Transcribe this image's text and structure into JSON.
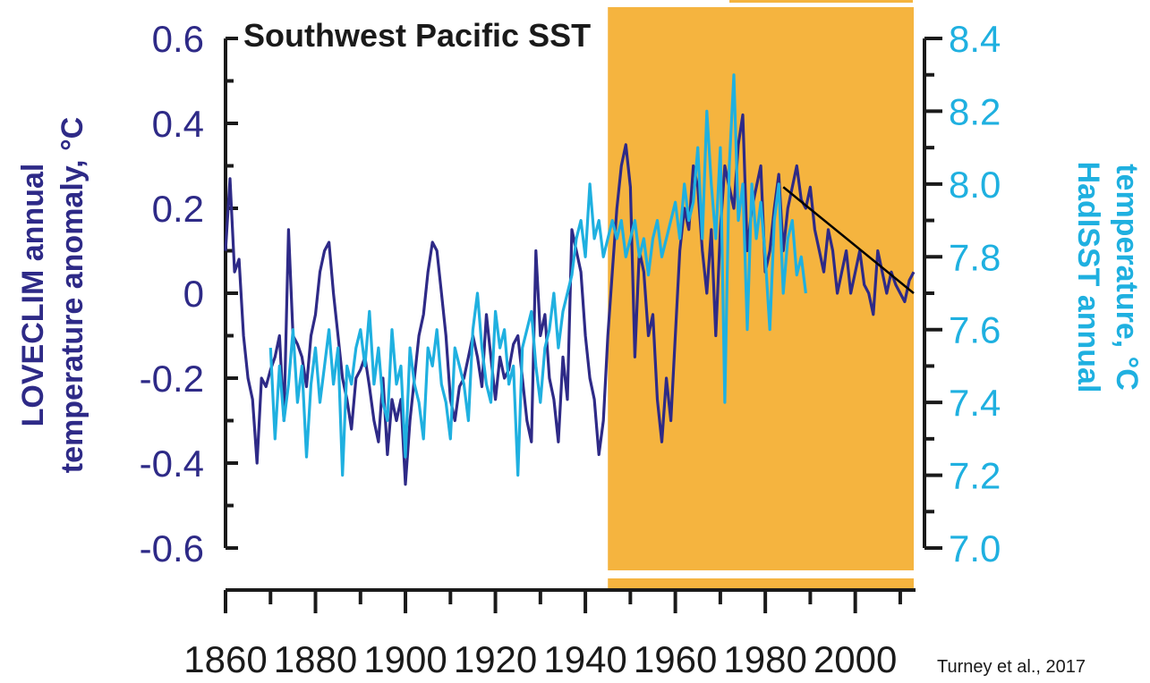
{
  "colors": {
    "loveclim": "#2e2a87",
    "hadisst": "#1fb0e0",
    "highlight": "#f5b43f",
    "axis": "#1a1a1a",
    "trend": "#000000"
  },
  "credit": "Turney et al., 2017",
  "chart_data": {
    "type": "line",
    "title": "Southwest Pacific SST",
    "highlight_range": [
      1945,
      2013
    ],
    "x_ticks": [
      "1860",
      "1880",
      "1900",
      "1920",
      "1940",
      "1960",
      "1980",
      "2000"
    ],
    "xlim": [
      1860,
      2013
    ],
    "left_axis": {
      "label_line1": "LOVECLIM annual",
      "label_line2": "temperature anomaly, °C",
      "ylim": [
        -0.6,
        0.6
      ],
      "ticks": [
        "0.6",
        "0.4",
        "0.2",
        "0",
        "-0.2",
        "-0.4",
        "-0.6"
      ]
    },
    "right_axis": {
      "label_line1": "HadISST annual",
      "label_line2": "temperature, °C",
      "ylim": [
        7.0,
        8.4
      ],
      "ticks": [
        "8.4",
        "8.2",
        "8.0",
        "7.8",
        "7.6",
        "7.4",
        "7.2",
        "7.0"
      ]
    },
    "series": [
      {
        "axis": "left",
        "x_start": 1860,
        "values": [
          0.1,
          0.27,
          0.05,
          0.08,
          -0.1,
          -0.2,
          -0.25,
          -0.4,
          -0.2,
          -0.22,
          -0.18,
          -0.15,
          -0.1,
          -0.3,
          0.15,
          -0.1,
          -0.12,
          -0.15,
          -0.22,
          -0.1,
          -0.05,
          0.05,
          0.1,
          0.12,
          0.0,
          -0.1,
          -0.2,
          -0.25,
          -0.32,
          -0.2,
          -0.18,
          -0.15,
          -0.22,
          -0.3,
          -0.35,
          -0.2,
          -0.38,
          -0.25,
          -0.3,
          -0.25,
          -0.45,
          -0.3,
          -0.2,
          -0.1,
          -0.05,
          0.05,
          0.12,
          0.1,
          0.0,
          -0.1,
          -0.25,
          -0.3,
          -0.22,
          -0.2,
          -0.15,
          -0.1,
          -0.15,
          -0.22,
          -0.05,
          -0.15,
          -0.25,
          -0.15,
          -0.2,
          -0.18,
          -0.12,
          -0.1,
          -0.2,
          -0.3,
          -0.35,
          0.1,
          -0.1,
          -0.05,
          -0.2,
          -0.25,
          -0.35,
          -0.15,
          -0.25,
          0.15,
          0.1,
          0.05,
          -0.1,
          -0.2,
          -0.25,
          -0.38,
          -0.3,
          -0.1,
          0.05,
          0.2,
          0.3,
          0.35,
          0.25,
          -0.15,
          0.1,
          0.05,
          -0.1,
          -0.05,
          -0.25,
          -0.35,
          -0.2,
          -0.3,
          -0.1,
          0.1,
          0.2,
          0.15,
          0.3,
          0.25,
          0.1,
          0.0,
          0.15,
          -0.1,
          0.15,
          0.3,
          0.25,
          0.2,
          0.35,
          0.42,
          0.1,
          0.2,
          0.25,
          0.3,
          0.05,
          0.1,
          0.2,
          0.28,
          0.1,
          0.2,
          0.25,
          0.3,
          0.22,
          0.2,
          0.25,
          0.15,
          0.1,
          0.05,
          0.15,
          0.1,
          0.0,
          0.05,
          0.1,
          0.0,
          0.05,
          0.1,
          0.02,
          0.0,
          -0.05,
          0.1,
          0.05,
          0.0,
          0.05,
          0.02,
          0.0,
          -0.02,
          0.03,
          0.05
        ]
      },
      {
        "axis": "right",
        "x_start": 1870,
        "values": [
          7.55,
          7.3,
          7.5,
          7.35,
          7.45,
          7.6,
          7.4,
          7.5,
          7.25,
          7.45,
          7.55,
          7.4,
          7.5,
          7.6,
          7.45,
          7.55,
          7.2,
          7.5,
          7.45,
          7.55,
          7.6,
          7.5,
          7.65,
          7.45,
          7.55,
          7.4,
          7.35,
          7.6,
          7.45,
          7.5,
          7.25,
          7.55,
          7.45,
          7.4,
          7.3,
          7.55,
          7.5,
          7.6,
          7.45,
          7.4,
          7.3,
          7.55,
          7.5,
          7.45,
          7.35,
          7.6,
          7.7,
          7.55,
          7.45,
          7.4,
          7.65,
          7.55,
          7.6,
          7.45,
          7.5,
          7.2,
          7.55,
          7.6,
          7.65,
          7.5,
          7.4,
          7.55,
          7.6,
          7.7,
          7.55,
          7.65,
          7.7,
          7.75,
          7.85,
          7.9,
          7.8,
          8.0,
          7.85,
          7.9,
          7.8,
          7.85,
          7.9,
          7.85,
          7.9,
          7.8,
          7.85,
          7.9,
          7.8,
          7.85,
          7.75,
          7.85,
          7.9,
          7.8,
          7.85,
          7.9,
          7.95,
          7.85,
          8.0,
          7.9,
          7.95,
          8.1,
          7.85,
          8.2,
          8.0,
          7.85,
          8.1,
          7.4,
          8.05,
          8.3,
          7.9,
          8.0,
          7.6,
          8.0,
          7.85,
          7.95,
          7.8,
          7.6,
          7.9,
          8.0,
          7.7,
          7.85,
          7.9,
          7.75,
          7.8,
          7.7
        ]
      }
    ],
    "trend": {
      "axis": "left",
      "x": [
        1984,
        2013
      ],
      "y": [
        0.25,
        -0.0
      ]
    }
  }
}
